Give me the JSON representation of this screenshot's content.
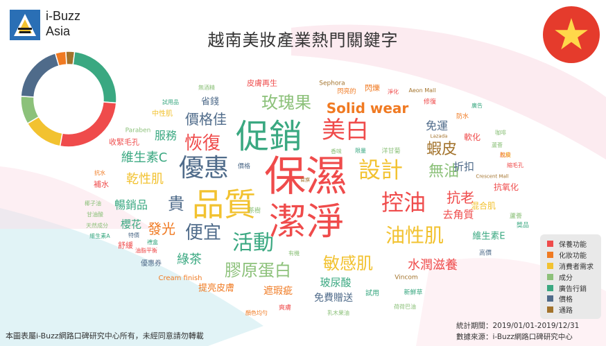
{
  "brand": {
    "line1": "i-Buzz",
    "line2": "Asia"
  },
  "title": "越南美妝產業熱門關鍵字",
  "colors": {
    "保養功能": "#ef4b4b",
    "化妝功能": "#f07a22",
    "消費者需求": "#f2c230",
    "成分": "#8cc17a",
    "廣告行銷": "#3aa881",
    "價格": "#4f6b8a",
    "通路": "#a3732c"
  },
  "chart_data": {
    "type": "pie",
    "subtype": "donut",
    "title": "越南美妝產業熱門關鍵字",
    "categories": [
      "保養功能",
      "化妝功能",
      "消費者需求",
      "成分",
      "廣告行銷",
      "價格",
      "通路"
    ],
    "values": [
      45,
      6,
      23,
      16,
      41,
      33,
      5
    ],
    "start_category": "通路",
    "legend": [
      "保養功能",
      "化妝功能",
      "消費者需求",
      "成分",
      "廣告行銷",
      "價格",
      "通路"
    ],
    "legend_placement": "bottom-right",
    "word_cloud": [
      {
        "text": "保濕",
        "cat": "保養功能",
        "size": 60
      },
      {
        "text": "潔淨",
        "cat": "保養功能",
        "size": 54
      },
      {
        "text": "促銷",
        "cat": "廣告行銷",
        "size": 48
      },
      {
        "text": "品質",
        "cat": "消費者需求",
        "size": 46
      },
      {
        "text": "優惠",
        "cat": "價格",
        "size": 36
      },
      {
        "text": "美白",
        "cat": "保養功能",
        "size": 34
      },
      {
        "text": "設計",
        "cat": "消費者需求",
        "size": 32
      },
      {
        "text": "控油",
        "cat": "保養功能",
        "size": 32
      },
      {
        "text": "活動",
        "cat": "廣告行銷",
        "size": 30
      },
      {
        "text": "油性肌",
        "cat": "消費者需求",
        "size": 28
      },
      {
        "text": "便宜",
        "cat": "價格",
        "size": 26
      },
      {
        "text": "恢復",
        "cat": "保養功能",
        "size": 26
      },
      {
        "text": "玫瑰果",
        "cat": "成分",
        "size": 24
      },
      {
        "text": "膠原蛋白",
        "cat": "成分",
        "size": 24
      },
      {
        "text": "敏感肌",
        "cat": "消費者需求",
        "size": 24
      },
      {
        "text": "貴",
        "cat": "價格",
        "size": 24
      },
      {
        "text": "無油",
        "cat": "成分",
        "size": 22
      },
      {
        "text": "蝦皮",
        "cat": "通路",
        "size": 22
      },
      {
        "text": "Solid wear",
        "cat": "化妝功能",
        "size": 20
      },
      {
        "text": "價格佳",
        "cat": "價格",
        "size": 20
      },
      {
        "text": "抗老",
        "cat": "保養功能",
        "size": 20
      },
      {
        "text": "發光",
        "cat": "化妝功能",
        "size": 20
      },
      {
        "text": "水潤滋養",
        "cat": "保養功能",
        "size": 18
      },
      {
        "text": "維生素C",
        "cat": "廣告行銷",
        "size": 18
      },
      {
        "text": "乾性肌",
        "cat": "消費者需求",
        "size": 18
      },
      {
        "text": "綠茶",
        "cat": "廣告行銷",
        "size": 18
      },
      {
        "text": "免運",
        "cat": "價格",
        "size": 16
      },
      {
        "text": "服務",
        "cat": "廣告行銷",
        "size": 16
      },
      {
        "text": "暢銷品",
        "cat": "廣告行銷",
        "size": 16
      },
      {
        "text": "去角質",
        "cat": "保養功能",
        "size": 15
      },
      {
        "text": "折扣",
        "cat": "價格",
        "size": 15
      },
      {
        "text": "櫻花",
        "cat": "廣告行銷",
        "size": 15
      },
      {
        "text": "玻尿酸",
        "cat": "廣告行銷",
        "size": 15
      },
      {
        "text": "遮瑕疵",
        "cat": "化妝功能",
        "size": 14
      },
      {
        "text": "免費贈送",
        "cat": "價格",
        "size": 14
      },
      {
        "text": "省錢",
        "cat": "價格",
        "size": 13
      },
      {
        "text": "維生素E",
        "cat": "廣告行銷",
        "size": 13
      },
      {
        "text": "提亮皮膚",
        "cat": "化妝功能",
        "size": 13
      },
      {
        "text": "軟化",
        "cat": "保養功能",
        "size": 12
      },
      {
        "text": "抗氧化",
        "cat": "保養功能",
        "size": 12
      },
      {
        "text": "混合肌",
        "cat": "消費者需求",
        "size": 12
      },
      {
        "text": "收緊毛孔",
        "cat": "保養功能",
        "size": 11
      },
      {
        "text": "補水",
        "cat": "保養功能",
        "size": 11
      },
      {
        "text": "舒緩",
        "cat": "保養功能",
        "size": 11
      },
      {
        "text": "皮膚再生",
        "cat": "保養功能",
        "size": 11
      },
      {
        "text": "閃爍",
        "cat": "化妝功能",
        "size": 11
      },
      {
        "text": "中性肌",
        "cat": "消費者需求",
        "size": 10
      },
      {
        "text": "試用",
        "cat": "廣告行銷",
        "size": 10
      },
      {
        "text": "Cream finish",
        "cat": "化妝功能",
        "size": 10
      },
      {
        "text": "優惠券",
        "cat": "價格",
        "size": 10
      },
      {
        "text": "Sephora",
        "cat": "通路",
        "size": 9
      },
      {
        "text": "閃亮的",
        "cat": "化妝功能",
        "size": 9
      },
      {
        "text": "修復",
        "cat": "保養功能",
        "size": 9
      },
      {
        "text": "防水",
        "cat": "化妝功能",
        "size": 9
      },
      {
        "text": "Paraben",
        "cat": "成分",
        "size": 9
      },
      {
        "text": "Vincom",
        "cat": "通路",
        "size": 9
      },
      {
        "text": "洋甘菊",
        "cat": "成分",
        "size": 9
      },
      {
        "text": "香味",
        "cat": "成分",
        "size": 8
      },
      {
        "text": "限量",
        "cat": "廣告行銷",
        "size": 8
      },
      {
        "text": "茶樹",
        "cat": "成分",
        "size": 9
      },
      {
        "text": "新鮮草",
        "cat": "廣告行銷",
        "size": 9
      },
      {
        "text": "爽膚",
        "cat": "保養功能",
        "size": 9
      },
      {
        "text": "特價",
        "cat": "價格",
        "size": 8
      },
      {
        "text": "高價",
        "cat": "價格",
        "size": 9
      },
      {
        "text": "價格",
        "cat": "價格",
        "size": 9
      },
      {
        "text": "蘆薈",
        "cat": "成分",
        "size": 9
      },
      {
        "text": "有機",
        "cat": "成分",
        "size": 8
      },
      {
        "text": "Aeon Mall",
        "cat": "通路",
        "size": 8
      },
      {
        "text": "Crescent Mall",
        "cat": "通路",
        "size": 7
      },
      {
        "text": "Lazada",
        "cat": "通路",
        "size": 7
      },
      {
        "text": "試用品",
        "cat": "廣告行銷",
        "size": 8
      },
      {
        "text": "無酒精",
        "cat": "成分",
        "size": 8
      },
      {
        "text": "甘油酸",
        "cat": "成分",
        "size": 8
      },
      {
        "text": "椰子油",
        "cat": "成分",
        "size": 8
      },
      {
        "text": "天然成分",
        "cat": "成分",
        "size": 8
      },
      {
        "text": "維生素A",
        "cat": "廣告行銷",
        "size": 8
      },
      {
        "text": "縮毛孔",
        "cat": "保養功能",
        "size": 8
      },
      {
        "text": "蘆薈",
        "cat": "成分",
        "size": 8
      },
      {
        "text": "淨化",
        "cat": "保養功能",
        "size": 8
      },
      {
        "text": "脫皮",
        "cat": "保養功能",
        "size": 8
      },
      {
        "text": "廣告",
        "cat": "廣告行銷",
        "size": 8
      },
      {
        "text": "獎品",
        "cat": "廣告行銷",
        "size": 9
      },
      {
        "text": "荷荷巴油",
        "cat": "成分",
        "size": 8
      },
      {
        "text": "顏色均勻",
        "cat": "化妝功能",
        "size": 8
      },
      {
        "text": "乳木果油",
        "cat": "成分",
        "size": 8
      },
      {
        "text": "油脂平衡",
        "cat": "保養功能",
        "size": 8
      },
      {
        "text": "咖啡",
        "cat": "成分",
        "size": 8
      },
      {
        "text": "包裝",
        "cat": "消費者需求",
        "size": 8
      },
      {
        "text": "抗水",
        "cat": "化妝功能",
        "size": 8
      },
      {
        "text": "禮盒",
        "cat": "廣告行銷",
        "size": 8
      },
      {
        "text": "官旗",
        "cat": "通路",
        "size": 7
      }
    ]
  },
  "footer": {
    "copyright": "本圖表屬i-Buzz網路口碑研究中心所有，未經同意請勿轉載",
    "period": "統計期間：2019/01/01-2019/12/31",
    "source": "數據來源：i-Buzz網路口碑研究中心"
  }
}
